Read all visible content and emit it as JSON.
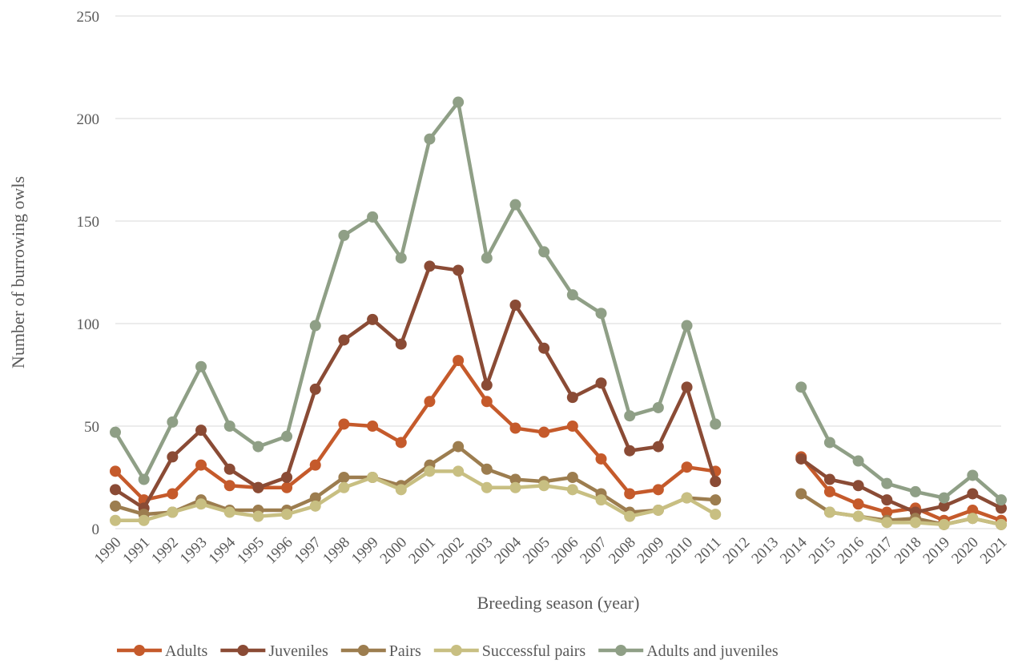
{
  "chart_data": {
    "type": "line",
    "title": "",
    "xlabel": "Breeding season (year)",
    "ylabel": "Number of burrowing owls",
    "ylim": [
      0,
      250
    ],
    "yticks": [
      "0",
      "50",
      "100",
      "150",
      "200",
      "250"
    ],
    "grid": true,
    "legend_position": "bottom",
    "categories": [
      "1990",
      "1991",
      "1992",
      "1993",
      "1994",
      "1995",
      "1996",
      "1997",
      "1998",
      "1999",
      "2000",
      "2001",
      "2002",
      "2003",
      "2004",
      "2005",
      "2006",
      "2007",
      "2008",
      "2009",
      "2010",
      "2011",
      "2012",
      "2013",
      "2014",
      "2015",
      "2016",
      "2017",
      "2018",
      "2019",
      "2020",
      "2021"
    ],
    "series": [
      {
        "name": "Adults",
        "color": "#c55a2b",
        "values": [
          28,
          14,
          17,
          31,
          21,
          20,
          20,
          31,
          51,
          50,
          42,
          62,
          82,
          62,
          49,
          47,
          50,
          34,
          17,
          19,
          30,
          28,
          null,
          null,
          35,
          18,
          12,
          8,
          10,
          4,
          9,
          4
        ]
      },
      {
        "name": "Juveniles",
        "color": "#8a4b35",
        "values": [
          19,
          10,
          35,
          48,
          29,
          20,
          25,
          68,
          92,
          102,
          90,
          128,
          126,
          70,
          109,
          88,
          64,
          71,
          38,
          40,
          69,
          23,
          null,
          null,
          34,
          24,
          21,
          14,
          8,
          11,
          17,
          10
        ]
      },
      {
        "name": "Pairs",
        "color": "#9c7d4f",
        "values": [
          11,
          7,
          8,
          14,
          9,
          9,
          9,
          15,
          25,
          25,
          21,
          31,
          40,
          29,
          24,
          23,
          25,
          17,
          8,
          9,
          15,
          14,
          null,
          null,
          17,
          8,
          6,
          4,
          5,
          2,
          5,
          2
        ]
      },
      {
        "name": "Successful pairs",
        "color": "#c8bf82",
        "values": [
          4,
          4,
          8,
          12,
          8,
          6,
          7,
          11,
          20,
          25,
          19,
          28,
          28,
          20,
          20,
          21,
          19,
          14,
          6,
          9,
          15,
          7,
          null,
          null,
          null,
          8,
          6,
          3,
          3,
          2,
          5,
          2
        ]
      },
      {
        "name": "Adults and juveniles",
        "color": "#8f9f86",
        "values": [
          47,
          24,
          52,
          79,
          50,
          40,
          45,
          99,
          143,
          152,
          132,
          190,
          208,
          132,
          158,
          135,
          114,
          105,
          55,
          59,
          99,
          51,
          null,
          null,
          69,
          42,
          33,
          22,
          18,
          15,
          26,
          14
        ]
      }
    ]
  }
}
